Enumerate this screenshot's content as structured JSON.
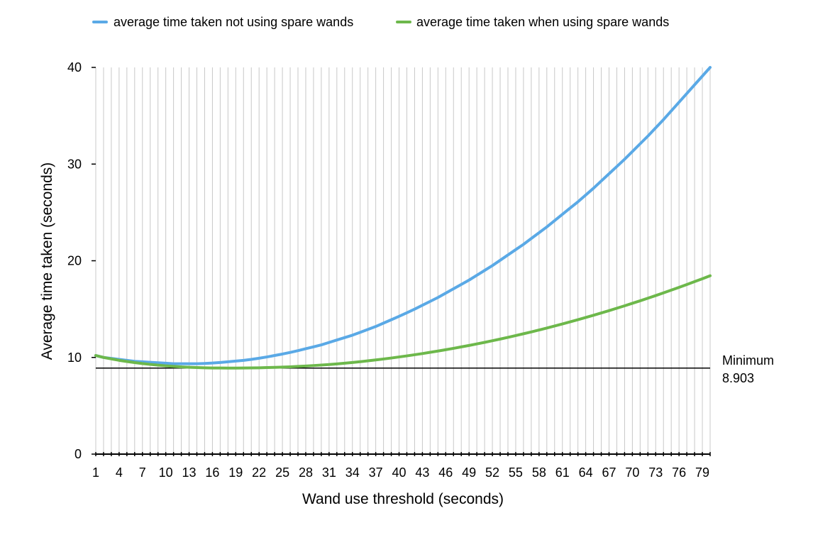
{
  "chart_data": {
    "type": "line",
    "title": "",
    "xlabel": "Wand use threshold (seconds)",
    "ylabel": "Average time taken (seconds)",
    "x": [
      1,
      2,
      3,
      4,
      5,
      6,
      7,
      8,
      9,
      10,
      11,
      12,
      13,
      14,
      15,
      16,
      17,
      18,
      19,
      20,
      21,
      22,
      23,
      24,
      25,
      26,
      27,
      28,
      29,
      30,
      31,
      32,
      33,
      34,
      35,
      36,
      37,
      38,
      39,
      40,
      41,
      42,
      43,
      44,
      45,
      46,
      47,
      48,
      49,
      50,
      51,
      52,
      53,
      54,
      55,
      56,
      57,
      58,
      59,
      60,
      61,
      62,
      63,
      64,
      65,
      66,
      67,
      68,
      69,
      70,
      71,
      72,
      73,
      74,
      75,
      76,
      77,
      78,
      79,
      80
    ],
    "xlim": [
      1,
      80
    ],
    "x_tick_labels": [
      "1",
      "4",
      "7",
      "10",
      "13",
      "16",
      "19",
      "22",
      "25",
      "28",
      "31",
      "34",
      "37",
      "40",
      "43",
      "46",
      "49",
      "52",
      "55",
      "58",
      "61",
      "64",
      "67",
      "70",
      "73",
      "76",
      "79"
    ],
    "x_tick_values": [
      1,
      4,
      7,
      10,
      13,
      16,
      19,
      22,
      25,
      28,
      31,
      34,
      37,
      40,
      43,
      46,
      49,
      52,
      55,
      58,
      61,
      64,
      67,
      70,
      73,
      76,
      79
    ],
    "ylim": [
      0,
      40
    ],
    "y_ticks": [
      0,
      10,
      20,
      30,
      40
    ],
    "grid": "vertical",
    "legend_position": "top",
    "series": [
      {
        "name": "average time taken not using spare wands",
        "color": "#5aa9e6",
        "values": [
          10.2,
          10.0,
          9.9,
          9.8,
          9.7,
          9.6,
          9.55,
          9.5,
          9.45,
          9.4,
          9.35,
          9.35,
          9.35,
          9.35,
          9.38,
          9.42,
          9.48,
          9.55,
          9.62,
          9.7,
          9.8,
          9.92,
          10.05,
          10.2,
          10.35,
          10.52,
          10.7,
          10.9,
          11.1,
          11.3,
          11.55,
          11.8,
          12.05,
          12.3,
          12.6,
          12.9,
          13.2,
          13.55,
          13.9,
          14.25,
          14.62,
          15.0,
          15.4,
          15.8,
          16.2,
          16.65,
          17.1,
          17.55,
          18.0,
          18.5,
          19.0,
          19.5,
          20.05,
          20.6,
          21.15,
          21.7,
          22.3,
          22.9,
          23.5,
          24.15,
          24.8,
          25.45,
          26.1,
          26.8,
          27.5,
          28.25,
          29.0,
          29.75,
          30.5,
          31.3,
          32.1,
          32.9,
          33.75,
          34.6,
          35.5,
          36.4,
          37.3,
          38.2,
          39.1,
          40.0
        ]
      },
      {
        "name": "average time taken when using spare wands",
        "color": "#6db84b",
        "values": [
          10.2,
          10.0,
          9.85,
          9.7,
          9.58,
          9.47,
          9.37,
          9.28,
          9.2,
          9.13,
          9.07,
          9.02,
          8.98,
          8.95,
          8.93,
          8.91,
          8.905,
          8.903,
          8.903,
          8.91,
          8.92,
          8.93,
          8.95,
          8.97,
          9.0,
          9.03,
          9.07,
          9.11,
          9.16,
          9.21,
          9.27,
          9.33,
          9.4,
          9.48,
          9.56,
          9.65,
          9.74,
          9.84,
          9.94,
          10.05,
          10.16,
          10.28,
          10.4,
          10.53,
          10.66,
          10.8,
          10.94,
          11.09,
          11.24,
          11.4,
          11.56,
          11.73,
          11.9,
          12.08,
          12.26,
          12.45,
          12.64,
          12.84,
          13.04,
          13.25,
          13.46,
          13.68,
          13.9,
          14.13,
          14.36,
          14.6,
          14.84,
          15.09,
          15.34,
          15.6,
          15.86,
          16.13,
          16.4,
          16.68,
          16.96,
          17.25,
          17.54,
          17.84,
          18.14,
          18.45
        ]
      }
    ],
    "reference_line": {
      "value": 8.903,
      "label_line1": "Minimum",
      "label_line2": "8.903"
    }
  }
}
